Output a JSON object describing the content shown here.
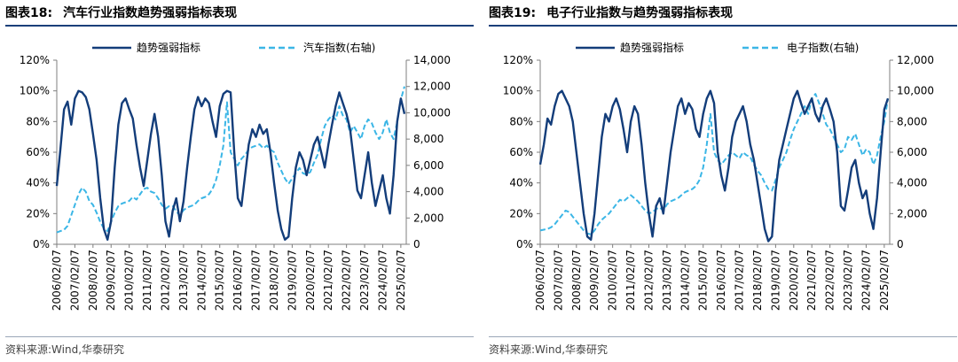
{
  "colors": {
    "dark": "#133d7a",
    "light": "#3bb6e6"
  },
  "panels": [
    {
      "figure_label": "图表18:",
      "title": "汽车行业指数趋势强弱指标表现",
      "source": "资料来源:Wind,华泰研究",
      "chart_data": {
        "type": "line",
        "title": "汽车行业指数趋势强弱指标表现",
        "legend_position": "top",
        "grid": false,
        "x_tick_labels": [
          "2006/02/07",
          "2007/02/07",
          "2008/02/07",
          "2009/02/07",
          "2010/02/07",
          "2011/02/07",
          "2012/02/07",
          "2013/02/07",
          "2014/02/07",
          "2015/02/07",
          "2016/02/07",
          "2017/02/07",
          "2018/02/07",
          "2019/02/07",
          "2020/02/07",
          "2021/02/07",
          "2022/02/07",
          "2023/02/07",
          "2024/02/07",
          "2025/02/07"
        ],
        "xlim": [
          2006.1,
          2025.4
        ],
        "y_left": {
          "ticks": [
            "0%",
            "20%",
            "40%",
            "60%",
            "80%",
            "100%",
            "120%"
          ],
          "range": [
            0,
            120
          ]
        },
        "y_right": {
          "ticks": [
            "0",
            "2,000",
            "4,000",
            "6,000",
            "8,000",
            "10,000",
            "12,000",
            "14,000"
          ],
          "range": [
            0,
            14000
          ]
        },
        "series": [
          {
            "name": "趋势强弱指标",
            "axis": "left",
            "style": "solid",
            "x": [
              2006.1,
              2006.3,
              2006.5,
              2006.7,
              2006.9,
              2007.1,
              2007.3,
              2007.5,
              2007.7,
              2007.9,
              2008.1,
              2008.3,
              2008.5,
              2008.7,
              2008.9,
              2009.1,
              2009.3,
              2009.5,
              2009.7,
              2009.9,
              2010.1,
              2010.3,
              2010.5,
              2010.7,
              2010.9,
              2011.1,
              2011.3,
              2011.5,
              2011.7,
              2011.9,
              2012.1,
              2012.3,
              2012.5,
              2012.7,
              2012.9,
              2013.1,
              2013.3,
              2013.5,
              2013.7,
              2013.9,
              2014.1,
              2014.3,
              2014.5,
              2014.7,
              2014.9,
              2015.1,
              2015.3,
              2015.5,
              2015.7,
              2015.9,
              2016.1,
              2016.3,
              2016.5,
              2016.7,
              2016.9,
              2017.1,
              2017.3,
              2017.5,
              2017.7,
              2017.9,
              2018.1,
              2018.3,
              2018.5,
              2018.7,
              2018.9,
              2019.1,
              2019.3,
              2019.5,
              2019.7,
              2019.9,
              2020.1,
              2020.3,
              2020.5,
              2020.7,
              2020.9,
              2021.1,
              2021.3,
              2021.5,
              2021.7,
              2021.9,
              2022.1,
              2022.3,
              2022.5,
              2022.7,
              2022.9,
              2023.1,
              2023.3,
              2023.5,
              2023.7,
              2023.9,
              2024.1,
              2024.3,
              2024.5,
              2024.7,
              2024.9,
              2025.1,
              2025.3
            ],
            "values": [
              38,
              62,
              88,
              93,
              78,
              95,
              100,
              99,
              96,
              88,
              72,
              55,
              30,
              10,
              3,
              15,
              50,
              78,
              92,
              95,
              88,
              82,
              65,
              50,
              38,
              55,
              72,
              85,
              70,
              45,
              15,
              5,
              22,
              30,
              15,
              28,
              50,
              70,
              88,
              96,
              90,
              95,
              92,
              80,
              70,
              90,
              98,
              100,
              99,
              60,
              30,
              25,
              45,
              65,
              75,
              70,
              78,
              72,
              75,
              60,
              40,
              22,
              10,
              3,
              5,
              30,
              50,
              60,
              55,
              45,
              55,
              65,
              70,
              60,
              50,
              65,
              78,
              90,
              99,
              92,
              85,
              75,
              55,
              35,
              30,
              45,
              60,
              40,
              25,
              35,
              45,
              30,
              20,
              45,
              80,
              95,
              85
            ]
          },
          {
            "name": "汽车指数(右轴)",
            "axis": "right",
            "style": "dashed",
            "x": [
              2006.1,
              2006.3,
              2006.5,
              2006.7,
              2006.9,
              2007.1,
              2007.3,
              2007.5,
              2007.7,
              2007.9,
              2008.1,
              2008.3,
              2008.5,
              2008.7,
              2008.9,
              2009.1,
              2009.3,
              2009.5,
              2009.7,
              2009.9,
              2010.1,
              2010.3,
              2010.5,
              2010.7,
              2010.9,
              2011.1,
              2011.3,
              2011.5,
              2011.7,
              2011.9,
              2012.1,
              2012.3,
              2012.5,
              2012.7,
              2012.9,
              2013.1,
              2013.3,
              2013.5,
              2013.7,
              2013.9,
              2014.1,
              2014.3,
              2014.5,
              2014.7,
              2014.9,
              2015.1,
              2015.3,
              2015.5,
              2015.7,
              2015.9,
              2016.1,
              2016.3,
              2016.5,
              2016.7,
              2016.9,
              2017.1,
              2017.3,
              2017.5,
              2017.7,
              2017.9,
              2018.1,
              2018.3,
              2018.5,
              2018.7,
              2018.9,
              2019.1,
              2019.3,
              2019.5,
              2019.7,
              2019.9,
              2020.1,
              2020.3,
              2020.5,
              2020.7,
              2020.9,
              2021.1,
              2021.3,
              2021.5,
              2021.7,
              2021.9,
              2022.1,
              2022.3,
              2022.5,
              2022.7,
              2022.9,
              2023.1,
              2023.3,
              2023.5,
              2023.7,
              2023.9,
              2024.1,
              2024.3,
              2024.5,
              2024.7,
              2024.9,
              2025.1,
              2025.3
            ],
            "values": [
              900,
              1000,
              1100,
              1400,
              2200,
              3000,
              3800,
              4300,
              4000,
              3300,
              3000,
              2400,
              1700,
              1200,
              1000,
              1700,
              2400,
              2900,
              3100,
              3200,
              3300,
              3600,
              3400,
              3800,
              4200,
              4300,
              4000,
              3900,
              3500,
              3000,
              2700,
              2900,
              2900,
              2500,
              2200,
              2600,
              2800,
              2900,
              3000,
              3300,
              3500,
              3600,
              3800,
              4200,
              4900,
              6000,
              7500,
              10800,
              7000,
              6500,
              6000,
              6500,
              6800,
              7200,
              7400,
              7500,
              7600,
              7300,
              7500,
              7200,
              7000,
              6200,
              5600,
              5000,
              4600,
              5000,
              5400,
              5800,
              5400,
              5300,
              5500,
              6200,
              6800,
              8000,
              9000,
              9500,
              9800,
              9500,
              10500,
              9800,
              9500,
              8500,
              9000,
              8500,
              8000,
              9000,
              9500,
              9200,
              8500,
              8000,
              8500,
              9500,
              8500,
              8000,
              9300,
              11000,
              12000
            ]
          }
        ]
      }
    },
    {
      "figure_label": "图表19:",
      "title": "电子行业指数与趋势强弱指标表现",
      "source": "资料来源:Wind,华泰研究",
      "chart_data": {
        "type": "line",
        "title": "电子行业指数与趋势强弱指标表现",
        "legend_position": "top",
        "grid": false,
        "x_tick_labels": [
          "2006/02/07",
          "2007/02/07",
          "2008/02/07",
          "2009/02/07",
          "2010/02/07",
          "2011/02/07",
          "2012/02/07",
          "2013/02/07",
          "2014/02/07",
          "2015/02/07",
          "2016/02/07",
          "2017/02/07",
          "2018/02/07",
          "2019/02/07",
          "2020/02/07",
          "2021/02/07",
          "2022/02/07",
          "2023/02/07",
          "2024/02/07",
          "2025/02/07"
        ],
        "xlim": [
          2006.1,
          2025.4
        ],
        "y_left": {
          "ticks": [
            "0%",
            "20%",
            "40%",
            "60%",
            "80%",
            "100%",
            "120%"
          ],
          "range": [
            0,
            120
          ]
        },
        "y_right": {
          "ticks": [
            "0",
            "2,000",
            "4,000",
            "6,000",
            "8,000",
            "10,000",
            "12,000"
          ],
          "range": [
            0,
            12000
          ]
        },
        "series": [
          {
            "name": "趋势强弱指标",
            "axis": "left",
            "style": "solid",
            "x": [
              2006.1,
              2006.3,
              2006.5,
              2006.7,
              2006.9,
              2007.1,
              2007.3,
              2007.5,
              2007.7,
              2007.9,
              2008.1,
              2008.3,
              2008.5,
              2008.7,
              2008.9,
              2009.1,
              2009.3,
              2009.5,
              2009.7,
              2009.9,
              2010.1,
              2010.3,
              2010.5,
              2010.7,
              2010.9,
              2011.1,
              2011.3,
              2011.5,
              2011.7,
              2011.9,
              2012.1,
              2012.3,
              2012.5,
              2012.7,
              2012.9,
              2013.1,
              2013.3,
              2013.5,
              2013.7,
              2013.9,
              2014.1,
              2014.3,
              2014.5,
              2014.7,
              2014.9,
              2015.1,
              2015.3,
              2015.5,
              2015.7,
              2015.9,
              2016.1,
              2016.3,
              2016.5,
              2016.7,
              2016.9,
              2017.1,
              2017.3,
              2017.5,
              2017.7,
              2017.9,
              2018.1,
              2018.3,
              2018.5,
              2018.7,
              2018.9,
              2019.1,
              2019.3,
              2019.5,
              2019.7,
              2019.9,
              2020.1,
              2020.3,
              2020.5,
              2020.7,
              2020.9,
              2021.1,
              2021.3,
              2021.5,
              2021.7,
              2021.9,
              2022.1,
              2022.3,
              2022.5,
              2022.7,
              2022.9,
              2023.1,
              2023.3,
              2023.5,
              2023.7,
              2023.9,
              2024.1,
              2024.3,
              2024.5,
              2024.7,
              2024.9,
              2025.1,
              2025.3
            ],
            "values": [
              52,
              65,
              82,
              78,
              90,
              98,
              100,
              95,
              90,
              80,
              60,
              40,
              20,
              5,
              3,
              20,
              45,
              70,
              85,
              80,
              90,
              95,
              88,
              75,
              60,
              80,
              90,
              85,
              65,
              40,
              20,
              5,
              25,
              30,
              20,
              40,
              60,
              75,
              90,
              95,
              85,
              92,
              88,
              75,
              70,
              85,
              95,
              100,
              92,
              60,
              45,
              35,
              50,
              70,
              80,
              85,
              90,
              80,
              65,
              55,
              40,
              25,
              10,
              2,
              5,
              35,
              55,
              65,
              75,
              85,
              95,
              100,
              92,
              85,
              90,
              95,
              85,
              80,
              90,
              95,
              88,
              80,
              60,
              25,
              22,
              35,
              50,
              55,
              40,
              30,
              35,
              20,
              10,
              30,
              60,
              88,
              95
            ]
          },
          {
            "name": "电子指数(右轴)",
            "axis": "right",
            "style": "dashed",
            "x": [
              2006.1,
              2006.3,
              2006.5,
              2006.7,
              2006.9,
              2007.1,
              2007.3,
              2007.5,
              2007.7,
              2007.9,
              2008.1,
              2008.3,
              2008.5,
              2008.7,
              2008.9,
              2009.1,
              2009.3,
              2009.5,
              2009.7,
              2009.9,
              2010.1,
              2010.3,
              2010.5,
              2010.7,
              2010.9,
              2011.1,
              2011.3,
              2011.5,
              2011.7,
              2011.9,
              2012.1,
              2012.3,
              2012.5,
              2012.7,
              2012.9,
              2013.1,
              2013.3,
              2013.5,
              2013.7,
              2013.9,
              2014.1,
              2014.3,
              2014.5,
              2014.7,
              2014.9,
              2015.1,
              2015.3,
              2015.5,
              2015.7,
              2015.9,
              2016.1,
              2016.3,
              2016.5,
              2016.7,
              2016.9,
              2017.1,
              2017.3,
              2017.5,
              2017.7,
              2017.9,
              2018.1,
              2018.3,
              2018.5,
              2018.7,
              2018.9,
              2019.1,
              2019.3,
              2019.5,
              2019.7,
              2019.9,
              2020.1,
              2020.3,
              2020.5,
              2020.7,
              2020.9,
              2021.1,
              2021.3,
              2021.5,
              2021.7,
              2021.9,
              2022.1,
              2022.3,
              2022.5,
              2022.7,
              2022.9,
              2023.1,
              2023.3,
              2023.5,
              2023.7,
              2023.9,
              2024.1,
              2024.3,
              2024.5,
              2024.7,
              2024.9,
              2025.1,
              2025.3
            ],
            "values": [
              900,
              950,
              1000,
              1100,
              1300,
              1600,
              1900,
              2200,
              2100,
              1800,
              1500,
              1200,
              900,
              700,
              650,
              900,
              1300,
              1600,
              1800,
              2000,
              2300,
              2600,
              2900,
              2800,
              3000,
              3200,
              3000,
              2800,
              2500,
              2200,
              2000,
              2100,
              2300,
              2400,
              2200,
              2600,
              2800,
              2900,
              3000,
              3200,
              3400,
              3500,
              3600,
              3800,
              4200,
              5000,
              6500,
              8500,
              6000,
              5500,
              5200,
              5500,
              5800,
              6000,
              5800,
              5600,
              6000,
              5800,
              5700,
              5200,
              4800,
              4500,
              4000,
              3600,
              3500,
              4200,
              5000,
              5500,
              6000,
              6800,
              7500,
              8000,
              8500,
              9000,
              8500,
              9500,
              9800,
              9200,
              8500,
              7800,
              7500,
              7000,
              6500,
              6000,
              6200,
              7000,
              6800,
              7200,
              6500,
              5800,
              6200,
              6000,
              5200,
              5800,
              7000,
              8000,
              9500
            ]
          }
        ]
      }
    }
  ]
}
